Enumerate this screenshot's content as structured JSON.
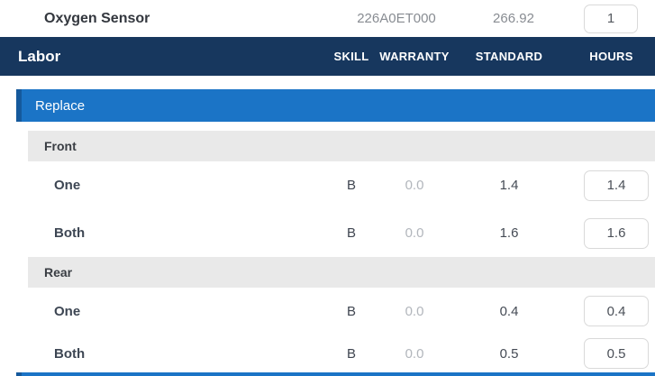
{
  "part_row": {
    "name": "Oxygen Sensor",
    "part_number": "226A0ET000",
    "price": "266.92",
    "quantity": "1"
  },
  "labor_header": {
    "title": "Labor",
    "columns": {
      "skill": "SKILL",
      "warranty": "WARRANTY",
      "standard": "STANDARD",
      "hours": "HOURS"
    }
  },
  "labor": {
    "operation": "Replace",
    "groups": [
      {
        "name": "Front",
        "rows": [
          {
            "label": "One",
            "skill": "B",
            "warranty": "0.0",
            "standard": "1.4",
            "hours": "1.4"
          },
          {
            "label": "Both",
            "skill": "B",
            "warranty": "0.0",
            "standard": "1.6",
            "hours": "1.6"
          }
        ]
      },
      {
        "name": "Rear",
        "rows": [
          {
            "label": "One",
            "skill": "B",
            "warranty": "0.0",
            "standard": "0.4",
            "hours": "0.4"
          },
          {
            "label": "Both",
            "skill": "B",
            "warranty": "0.0",
            "standard": "0.5",
            "hours": "0.5"
          }
        ]
      }
    ]
  },
  "colors": {
    "header_navy": "#17375e",
    "section_blue": "#1b74c6",
    "section_blue_accent": "#15599c",
    "group_gray": "#e9e9e9",
    "input_border": "#d9d9d9"
  }
}
